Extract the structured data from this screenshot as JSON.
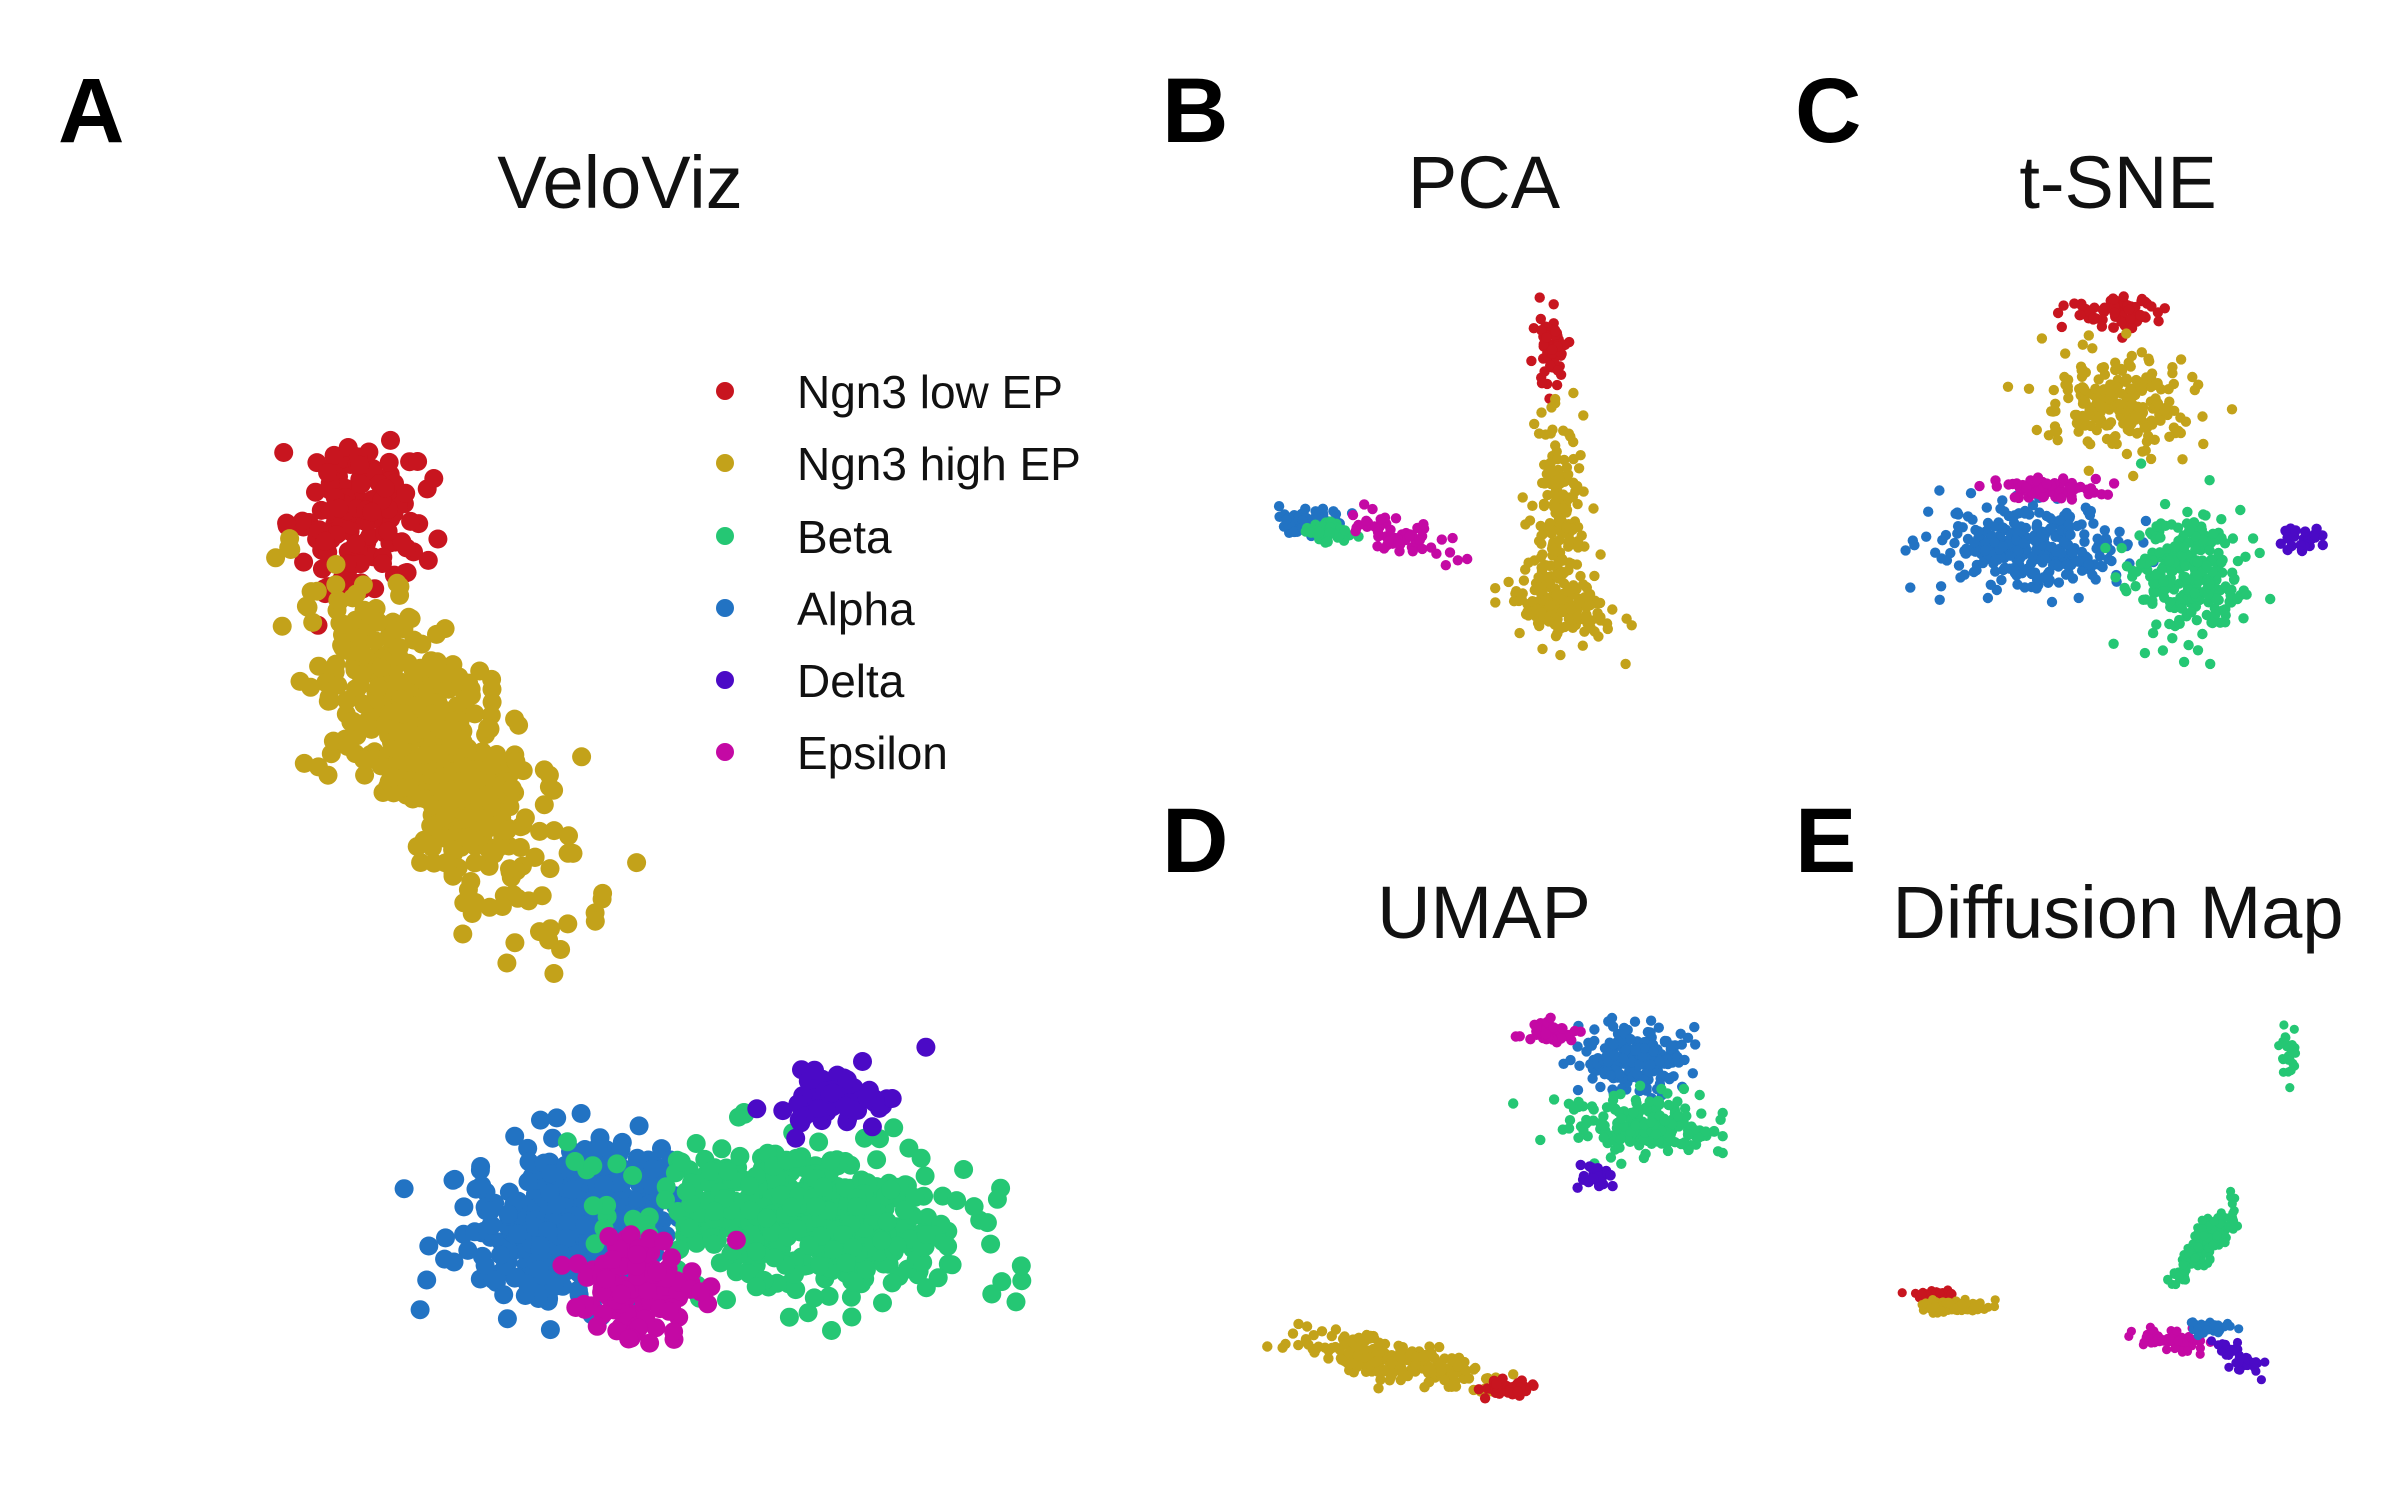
{
  "colors": {
    "Ngn3 low EP": "#c8151f",
    "Ngn3 high EP": "#c3a21a",
    "Beta": "#25c774",
    "Alpha": "#2273c3",
    "Delta": "#4b0ac6",
    "Epsilon": "#c409a4"
  },
  "legend": {
    "entries": [
      "Ngn3 low EP",
      "Ngn3 high EP",
      "Beta",
      "Alpha",
      "Delta",
      "Epsilon"
    ],
    "placement": "top-right of panel A"
  },
  "chart_data": [
    {
      "panel": "A",
      "title": "VeloViz",
      "type": "scatter",
      "xlabel": "",
      "ylabel": "",
      "axes_visible": false,
      "grid": false,
      "clusters": [
        {
          "name": "Ngn3 low EP",
          "n": 140,
          "center": [
            0.2,
            0.2
          ],
          "spread": [
            0.07,
            0.065
          ],
          "angle": -35
        },
        {
          "name": "Ngn3 high EP",
          "n": 520,
          "center": [
            0.28,
            0.41
          ],
          "spread": [
            0.17,
            0.075
          ],
          "angle": 48
        },
        {
          "name": "Alpha",
          "n": 430,
          "center": [
            0.44,
            0.83
          ],
          "spread": [
            0.13,
            0.065
          ],
          "angle": -8
        },
        {
          "name": "Beta",
          "n": 520,
          "center": [
            0.7,
            0.83
          ],
          "spread": [
            0.17,
            0.065
          ],
          "angle": 4
        },
        {
          "name": "Delta",
          "n": 70,
          "center": [
            0.73,
            0.72
          ],
          "spread": [
            0.07,
            0.025
          ],
          "angle": -12
        },
        {
          "name": "Epsilon",
          "n": 120,
          "center": [
            0.51,
            0.89
          ],
          "spread": [
            0.07,
            0.045
          ],
          "angle": 0
        }
      ]
    },
    {
      "panel": "B",
      "title": "PCA",
      "type": "scatter",
      "xlabel": "",
      "ylabel": "",
      "axes_visible": false,
      "grid": false,
      "clusters": [
        {
          "name": "Ngn3 low EP",
          "n": 70,
          "center": [
            0.62,
            0.18
          ],
          "spread": [
            0.035,
            0.09
          ],
          "angle": 0
        },
        {
          "name": "Ngn3 high EP",
          "n": 180,
          "center": [
            0.64,
            0.58
          ],
          "spread": [
            0.05,
            0.24
          ],
          "angle": 0
        },
        {
          "name": "Ngn3 high EP",
          "n": 150,
          "center": [
            0.65,
            0.8
          ],
          "spread": [
            0.13,
            0.07
          ],
          "angle": 15
        },
        {
          "name": "Alpha",
          "n": 90,
          "center": [
            0.1,
            0.6
          ],
          "spread": [
            0.06,
            0.03
          ],
          "angle": 0
        },
        {
          "name": "Beta",
          "n": 50,
          "center": [
            0.14,
            0.62
          ],
          "spread": [
            0.06,
            0.03
          ],
          "angle": 0
        },
        {
          "name": "Epsilon",
          "n": 60,
          "center": [
            0.28,
            0.63
          ],
          "spread": [
            0.12,
            0.04
          ],
          "angle": 18
        }
      ]
    },
    {
      "panel": "C",
      "title": "t-SNE",
      "type": "scatter",
      "xlabel": "",
      "ylabel": "",
      "axes_visible": false,
      "grid": false,
      "clusters": [
        {
          "name": "Ngn3 low EP",
          "n": 70,
          "center": [
            0.5,
            0.1
          ],
          "spread": [
            0.1,
            0.04
          ],
          "angle": 0
        },
        {
          "name": "Ngn3 high EP",
          "n": 230,
          "center": [
            0.5,
            0.32
          ],
          "spread": [
            0.17,
            0.12
          ],
          "angle": 0
        },
        {
          "name": "Alpha",
          "n": 300,
          "center": [
            0.3,
            0.66
          ],
          "spread": [
            0.22,
            0.1
          ],
          "angle": 0
        },
        {
          "name": "Beta",
          "n": 280,
          "center": [
            0.66,
            0.72
          ],
          "spread": [
            0.13,
            0.15
          ],
          "angle": 0
        },
        {
          "name": "Delta",
          "n": 30,
          "center": [
            0.93,
            0.64
          ],
          "spread": [
            0.05,
            0.04
          ],
          "angle": 0
        },
        {
          "name": "Epsilon",
          "n": 70,
          "center": [
            0.33,
            0.52
          ],
          "spread": [
            0.13,
            0.025
          ],
          "angle": 0
        }
      ]
    },
    {
      "panel": "D",
      "title": "UMAP",
      "type": "scatter",
      "xlabel": "",
      "ylabel": "",
      "axes_visible": false,
      "grid": false,
      "clusters": [
        {
          "name": "Ngn3 high EP",
          "n": 240,
          "center": [
            0.28,
            0.86
          ],
          "spread": [
            0.2,
            0.05
          ],
          "angle": 14
        },
        {
          "name": "Ngn3 low EP",
          "n": 50,
          "center": [
            0.52,
            0.92
          ],
          "spread": [
            0.05,
            0.02
          ],
          "angle": 0
        },
        {
          "name": "Alpha",
          "n": 210,
          "center": [
            0.8,
            0.14
          ],
          "spread": [
            0.12,
            0.08
          ],
          "angle": 0
        },
        {
          "name": "Beta",
          "n": 220,
          "center": [
            0.82,
            0.3
          ],
          "spread": [
            0.16,
            0.07
          ],
          "angle": 0
        },
        {
          "name": "Delta",
          "n": 30,
          "center": [
            0.72,
            0.42
          ],
          "spread": [
            0.04,
            0.03
          ],
          "angle": 0
        },
        {
          "name": "Epsilon",
          "n": 45,
          "center": [
            0.62,
            0.08
          ],
          "spread": [
            0.06,
            0.03
          ],
          "angle": 0
        }
      ]
    },
    {
      "panel": "E",
      "title": "Diffusion Map",
      "type": "scatter",
      "xlabel": "",
      "ylabel": "",
      "axes_visible": false,
      "grid": false,
      "clusters": [
        {
          "name": "Ngn3 low EP",
          "n": 45,
          "center": [
            0.08,
            0.7
          ],
          "spread": [
            0.05,
            0.01
          ],
          "angle": 0
        },
        {
          "name": "Ngn3 high EP",
          "n": 110,
          "center": [
            0.12,
            0.73
          ],
          "spread": [
            0.07,
            0.015
          ],
          "angle": 0
        },
        {
          "name": "Beta",
          "n": 180,
          "center": [
            0.71,
            0.58
          ],
          "spread": [
            0.11,
            0.03
          ],
          "angle": -52
        },
        {
          "name": "Beta",
          "n": 25,
          "center": [
            0.9,
            0.13
          ],
          "spread": [
            0.02,
            0.08
          ],
          "angle": 0
        },
        {
          "name": "Epsilon",
          "n": 60,
          "center": [
            0.63,
            0.81
          ],
          "spread": [
            0.08,
            0.025
          ],
          "angle": 8
        },
        {
          "name": "Alpha",
          "n": 40,
          "center": [
            0.72,
            0.78
          ],
          "spread": [
            0.05,
            0.02
          ],
          "angle": 0
        },
        {
          "name": "Delta",
          "n": 45,
          "center": [
            0.79,
            0.85
          ],
          "spread": [
            0.06,
            0.02
          ],
          "angle": 35
        }
      ]
    }
  ]
}
